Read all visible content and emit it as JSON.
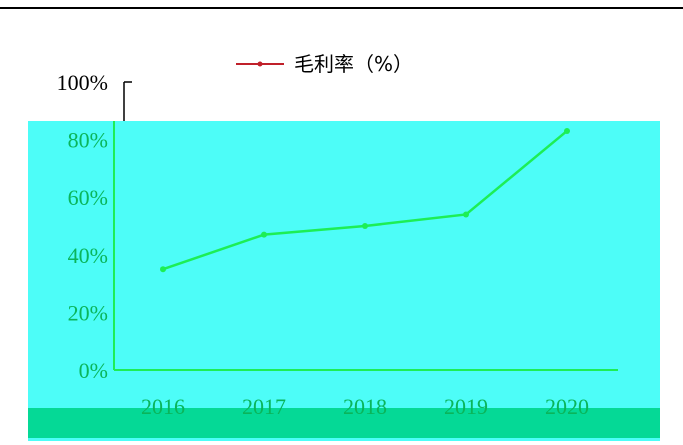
{
  "colors": {
    "overlay": "#4dfdf8",
    "overlay_strip": "#05d996",
    "plot_line": "#1dee55",
    "legend_line": "#c0202a",
    "text_dark": "#000000",
    "text_green": "#0ab55a"
  },
  "chart_data": {
    "type": "line",
    "legend": [
      "毛利率（%）"
    ],
    "legend_position": "top-center",
    "categories": [
      "2016",
      "2017",
      "2018",
      "2019",
      "2020"
    ],
    "series": [
      {
        "name": "毛利率（%）",
        "values": [
          35,
          47,
          50,
          54,
          83
        ]
      }
    ],
    "y_ticks": [
      "0%",
      "20%",
      "40%",
      "60%",
      "80%",
      "100%"
    ],
    "ylim": [
      0,
      100
    ],
    "grid": false
  }
}
